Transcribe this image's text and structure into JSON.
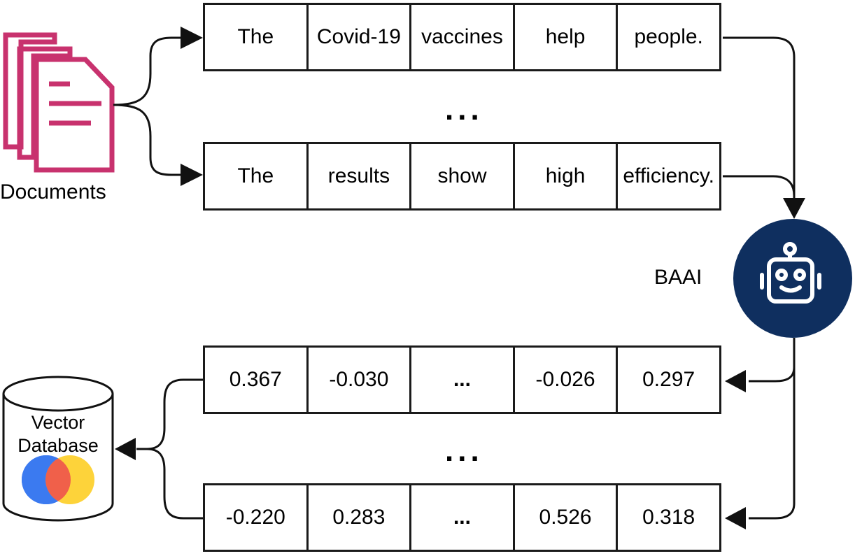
{
  "documents": {
    "label": "Documents"
  },
  "sentences": [
    [
      "The",
      "Covid-19",
      "vaccines",
      "help",
      "people."
    ],
    [
      "The",
      "results",
      "show",
      "high",
      "efficiency."
    ]
  ],
  "sentences_ellipsis": "...",
  "model": {
    "label": "BAAI"
  },
  "embeddings": [
    [
      "0.367",
      "-0.030",
      "...",
      "-0.026",
      "0.297"
    ],
    [
      "-0.220",
      "0.283",
      "...",
      "0.526",
      "0.318"
    ]
  ],
  "embeddings_ellipsis": "...",
  "vector_db": {
    "line1": "Vector",
    "line2": "Database"
  },
  "colors": {
    "documents": "#c8326e",
    "model_circle": "#0f2f5f",
    "db_blue": "#3b7af0",
    "db_red": "#f0604a",
    "db_yellow": "#fdd33a",
    "stroke": "#111111"
  },
  "icons": {
    "documents": "documents-icon",
    "model": "robot-icon",
    "database": "database-icon"
  }
}
